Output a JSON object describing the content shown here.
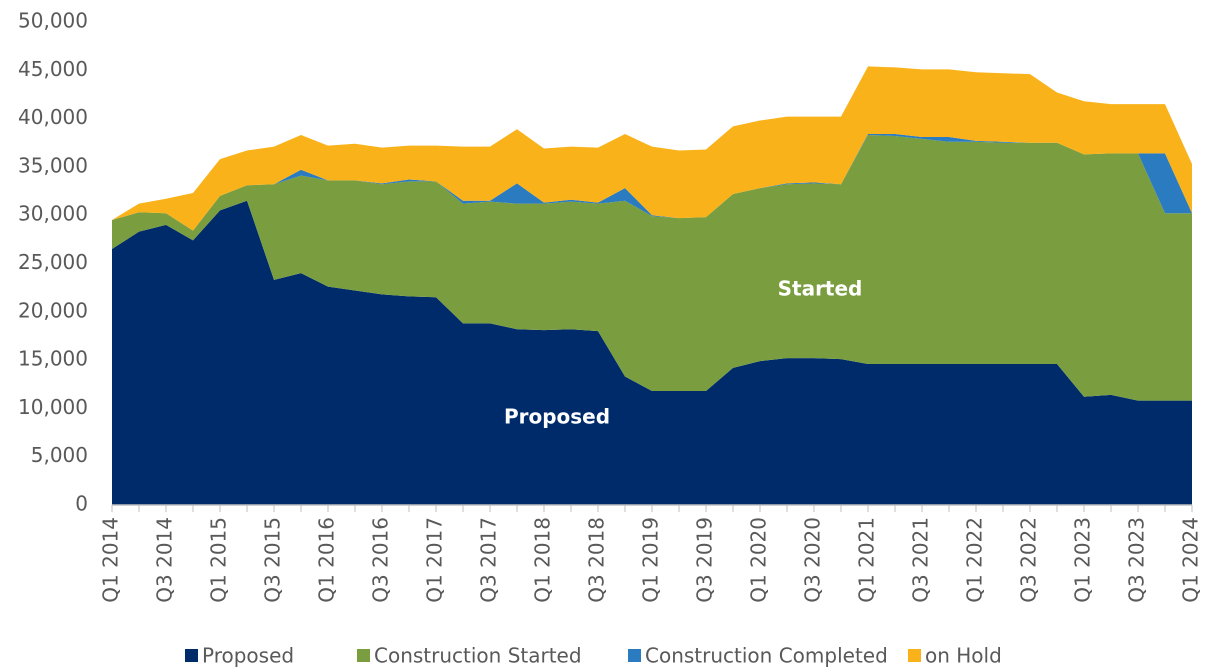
{
  "chart_data": {
    "type": "stacked_area",
    "categories": [
      "Q1 2014",
      null,
      "Q3 2014",
      null,
      "Q1 2015",
      null,
      "Q3 2015",
      null,
      "Q1 2016",
      null,
      "Q3 2016",
      null,
      "Q1 2017",
      null,
      "Q3 2017",
      null,
      "Q1 2018",
      null,
      "Q3 2018",
      null,
      "Q1 2019",
      null,
      "Q3 2019",
      null,
      "Q1 2020",
      null,
      "Q3 2020",
      null,
      "Q1 2021",
      null,
      "Q3 2021",
      null,
      "Q1 2022",
      null,
      "Q3 2022",
      null,
      "Q1 2023",
      null,
      "Q3 2023",
      null,
      "Q1 2024"
    ],
    "series": [
      {
        "name": "Proposed",
        "color": "#002b6b",
        "values": [
          26500,
          28300,
          29000,
          27400,
          30500,
          31500,
          23300,
          24000,
          22600,
          22200,
          21800,
          21600,
          21500,
          18800,
          18800,
          18200,
          18100,
          18200,
          18000,
          13300,
          11800,
          11800,
          11800,
          14200,
          14900,
          15200,
          15200,
          15100,
          14600,
          14600,
          14600,
          14600,
          14600,
          14600,
          14600,
          14600,
          11200,
          11400,
          10800,
          10800,
          10800
        ]
      },
      {
        "name": "Construction Started",
        "color": "#7a9e3f",
        "values": [
          3000,
          2000,
          1200,
          1000,
          1500,
          1600,
          9900,
          10100,
          11000,
          11400,
          11400,
          11900,
          12000,
          12400,
          12600,
          13000,
          13100,
          13200,
          13200,
          18200,
          18100,
          17900,
          18000,
          18000,
          17900,
          18000,
          18100,
          18100,
          23700,
          23600,
          23300,
          23000,
          23000,
          22900,
          22900,
          22900,
          25100,
          25000,
          25600,
          19400,
          19400
        ]
      },
      {
        "name": "Construction Completed",
        "color": "#2a7bc0",
        "values": [
          0,
          0,
          0,
          0,
          0,
          0,
          0,
          600,
          0,
          0,
          100,
          200,
          0,
          300,
          100,
          2100,
          100,
          200,
          100,
          1300,
          100,
          0,
          0,
          0,
          0,
          100,
          100,
          0,
          100,
          200,
          200,
          500,
          100,
          100,
          0,
          0,
          0,
          0,
          0,
          6200,
          0
        ]
      },
      {
        "name": "on Hold",
        "color": "#f9b219",
        "values": [
          0,
          900,
          1500,
          3900,
          3800,
          3600,
          3900,
          3600,
          3600,
          3800,
          3700,
          3500,
          3700,
          5600,
          5600,
          5600,
          5600,
          5500,
          5700,
          5600,
          7100,
          7000,
          7000,
          7000,
          7000,
          6900,
          6800,
          7000,
          7000,
          6900,
          7000,
          7000,
          7100,
          7100,
          7100,
          5200,
          5500,
          5100,
          5100,
          5100,
          5100
        ]
      }
    ],
    "annotations": [
      "Proposed",
      "Started"
    ],
    "ylim": [
      0,
      50000
    ],
    "yticks": [
      0,
      {
        "value": 5000,
        "label": "5,000"
      },
      {
        "value": 10000,
        "label": "10,000"
      },
      {
        "value": 15000,
        "label": "15,000"
      },
      {
        "value": 20000,
        "label": "20,000"
      },
      {
        "value": 25000,
        "label": "25,000"
      },
      {
        "value": 30000,
        "label": "30,000"
      },
      {
        "value": 35000,
        "label": "35,000"
      },
      {
        "value": 40000,
        "label": "40,000"
      },
      {
        "value": 45000,
        "label": "45,000"
      },
      {
        "value": 50000,
        "label": "50,000"
      }
    ],
    "grid": false,
    "legend": "bottom"
  }
}
